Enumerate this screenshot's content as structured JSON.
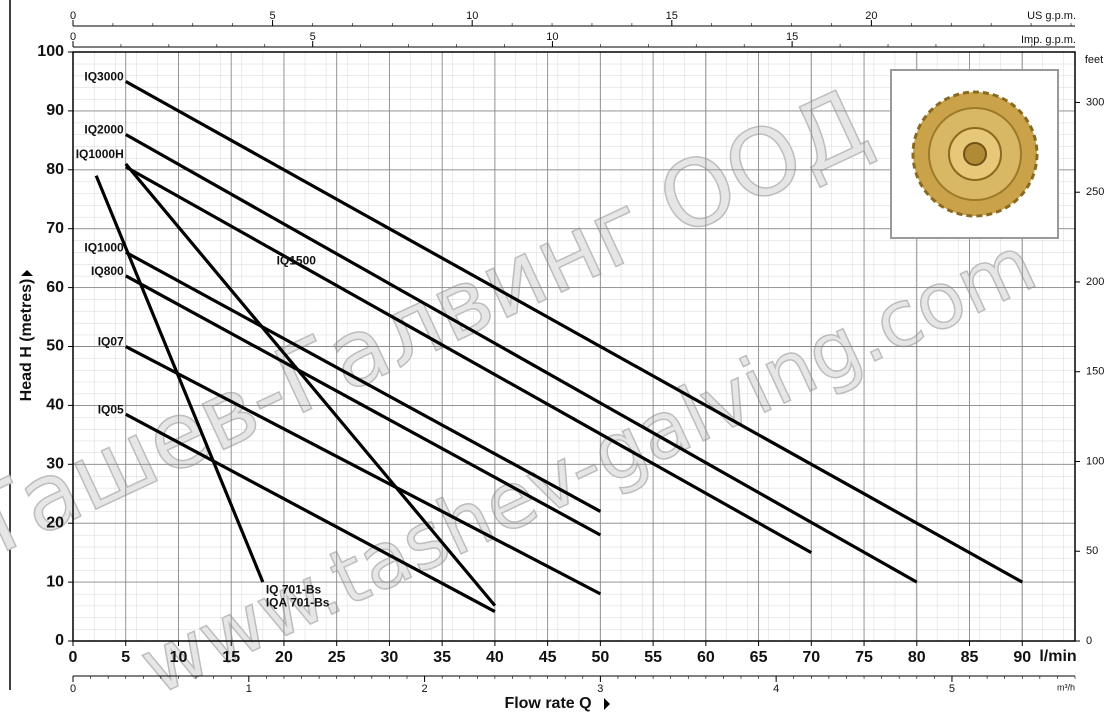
{
  "chart_data": {
    "type": "line",
    "x_label": "Flow rate Q",
    "y_label": "Head H (metres)",
    "x_unit": "l/min",
    "xlim": [
      0,
      95
    ],
    "xticks": [
      0,
      5,
      10,
      15,
      20,
      25,
      30,
      35,
      40,
      45,
      50,
      55,
      60,
      65,
      70,
      75,
      80,
      85,
      90
    ],
    "ylim": [
      0,
      100
    ],
    "yticks": [
      0,
      10,
      20,
      30,
      40,
      50,
      60,
      70,
      80,
      90,
      100
    ],
    "y2_label": "feet",
    "y2lim": [
      0,
      328.1
    ],
    "y2ticks": [
      0,
      50,
      100,
      150,
      200,
      250,
      300
    ],
    "x_top_us_label": "US g.p.m.",
    "x_top_us_lim": [
      0,
      25.1
    ],
    "x_top_us_ticks": [
      0,
      5,
      10,
      15,
      20
    ],
    "x_top_imp_label": "Imp. g.p.m.",
    "x_top_imp_lim": [
      0,
      20.9
    ],
    "x_top_imp_ticks": [
      0,
      5,
      10,
      15
    ],
    "x_bottom2_label": "m³/h",
    "x_bottom2_lim": [
      0,
      5.7
    ],
    "x_bottom2_ticks": [
      0,
      1,
      2,
      3,
      4,
      5
    ],
    "grid": true,
    "watermarks": [
      "Ташев-Галвинг ООД",
      "www.tashev-galving.com"
    ],
    "series": [
      {
        "name": "IQ3000",
        "color": "#000000",
        "x": [
          5,
          90
        ],
        "y": [
          95,
          10
        ]
      },
      {
        "name": "IQ2000",
        "color": "#000000",
        "x": [
          5,
          80
        ],
        "y": [
          86,
          10
        ]
      },
      {
        "name": "IQ1000H",
        "color": "#000000",
        "x": [
          5,
          40
        ],
        "y": [
          81,
          6
        ]
      },
      {
        "name": "IQ1500",
        "color": "#000000",
        "x": [
          5,
          70
        ],
        "y": [
          80.5,
          15
        ]
      },
      {
        "name": "IQ1000",
        "color": "#000000",
        "x": [
          5,
          50
        ],
        "y": [
          66,
          22
        ]
      },
      {
        "name": "IQ800",
        "color": "#000000",
        "x": [
          5,
          50
        ],
        "y": [
          62,
          18
        ]
      },
      {
        "name": "IQ07",
        "color": "#000000",
        "x": [
          5,
          50
        ],
        "y": [
          50,
          8
        ]
      },
      {
        "name": "IQ05",
        "color": "#000000",
        "x": [
          5,
          40
        ],
        "y": [
          38.5,
          5
        ]
      },
      {
        "name": "IQ 701-Bs",
        "alt_name": "IQA 701-Bs",
        "color": "#000000",
        "x": [
          2.2,
          18
        ],
        "y": [
          79,
          10
        ]
      }
    ]
  }
}
